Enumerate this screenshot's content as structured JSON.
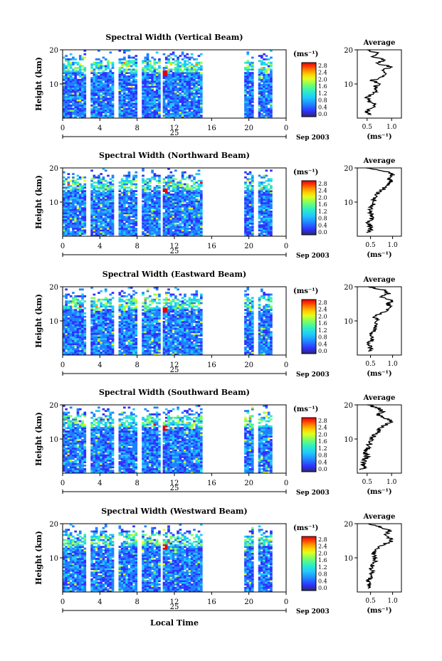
{
  "xaxis_label": "Local Time",
  "colorbar_unit": "(ms⁻¹)",
  "colorbar_ticks": [
    "2.8",
    "2.4",
    "2.0",
    "1.6",
    "1.2",
    "0.8",
    "0.4",
    "0.0"
  ],
  "height_label": "Height (km)",
  "avg_title": "Average",
  "avg_xlabel": "(ms⁻¹)",
  "date_day": "25",
  "date_month": "Sep 2003",
  "colors": {
    "scale": [
      "#2a2a6a",
      "#3030ff",
      "#2080ff",
      "#20c8ff",
      "#30f0c0",
      "#80ff60",
      "#e0ff20",
      "#ffd000",
      "#ff8000",
      "#ff3000",
      "#e00010"
    ],
    "missing": "#ffffff",
    "axis": "#000000"
  },
  "chart_data": [
    {
      "type": "heatmap",
      "title": "Spectral Width (Vertical Beam)",
      "xlim": [
        0,
        24
      ],
      "ylim": [
        0,
        20
      ],
      "xticks": [
        "0",
        "4",
        "8",
        "12",
        "16",
        "20",
        "0"
      ],
      "yticks": [
        "10",
        "20"
      ],
      "clim": [
        0.0,
        2.8
      ],
      "data_gaps_hours": [
        [
          2.5,
          3.0
        ],
        [
          5.5,
          6.0
        ],
        [
          7.8,
          8.3
        ],
        [
          10.3,
          10.7
        ],
        [
          15.0,
          19.3
        ],
        [
          20.5,
          21.0
        ],
        [
          22.4,
          24.0
        ]
      ],
      "average_profile": {
        "title": "Average",
        "xlim": [
          0.3,
          1.2
        ],
        "xticks": [
          "0.5",
          "1.0"
        ],
        "yticks": [
          "10",
          "20"
        ],
        "height_km": [
          1,
          2,
          3,
          4,
          5,
          6,
          7,
          8,
          9,
          10,
          11,
          12,
          13,
          14,
          15,
          16,
          17,
          18,
          19,
          20
        ],
        "width_ms": [
          0.55,
          0.5,
          0.6,
          0.65,
          0.55,
          0.5,
          0.6,
          0.7,
          0.65,
          0.75,
          0.6,
          0.8,
          0.9,
          0.75,
          1.0,
          0.7,
          0.85,
          0.6,
          0.7,
          0.5
        ]
      }
    },
    {
      "type": "heatmap",
      "title": "Spectral Width (Northward Beam)",
      "xlim": [
        0,
        24
      ],
      "ylim": [
        0,
        20
      ],
      "xticks": [
        "0",
        "4",
        "8",
        "12",
        "16",
        "20",
        "0"
      ],
      "yticks": [
        "10",
        "20"
      ],
      "clim": [
        0.0,
        2.8
      ],
      "data_gaps_hours": [
        [
          2.5,
          3.0
        ],
        [
          5.5,
          6.0
        ],
        [
          7.8,
          8.3
        ],
        [
          10.3,
          10.7
        ],
        [
          15.0,
          19.3
        ],
        [
          20.5,
          21.0
        ],
        [
          22.4,
          24.0
        ]
      ],
      "average_profile": {
        "title": "Average",
        "xlim": [
          0.2,
          1.2
        ],
        "xticks": [
          "0.5",
          "1.0"
        ],
        "yticks": [
          "10",
          "20"
        ],
        "height_km": [
          1,
          2,
          3,
          4,
          5,
          6,
          7,
          8,
          9,
          10,
          11,
          12,
          13,
          14,
          15,
          16,
          17,
          18,
          19,
          20
        ],
        "width_ms": [
          0.45,
          0.5,
          0.5,
          0.45,
          0.5,
          0.55,
          0.5,
          0.5,
          0.55,
          0.55,
          0.6,
          0.65,
          0.7,
          0.8,
          0.9,
          0.95,
          0.9,
          1.0,
          0.85,
          0.4
        ]
      }
    },
    {
      "type": "heatmap",
      "title": "Spectral Width (Eastward Beam)",
      "xlim": [
        0,
        24
      ],
      "ylim": [
        0,
        20
      ],
      "xticks": [
        "0",
        "4",
        "8",
        "12",
        "16",
        "20",
        "0"
      ],
      "yticks": [
        "10",
        "20"
      ],
      "clim": [
        0.0,
        2.8
      ],
      "data_gaps_hours": [
        [
          2.5,
          3.0
        ],
        [
          5.5,
          6.0
        ],
        [
          7.8,
          8.3
        ],
        [
          10.3,
          10.7
        ],
        [
          15.0,
          19.3
        ],
        [
          20.5,
          21.0
        ],
        [
          22.4,
          24.0
        ]
      ],
      "average_profile": {
        "title": "Average",
        "xlim": [
          0.2,
          1.2
        ],
        "xticks": [
          "0.5",
          "1.0"
        ],
        "yticks": [
          "10",
          "20"
        ],
        "height_km": [
          1,
          2,
          3,
          4,
          5,
          6,
          7,
          8,
          9,
          10,
          11,
          12,
          13,
          14,
          15,
          16,
          17,
          18,
          19,
          20
        ],
        "width_ms": [
          0.45,
          0.5,
          0.45,
          0.5,
          0.55,
          0.5,
          0.55,
          0.6,
          0.6,
          0.65,
          0.6,
          0.7,
          0.85,
          0.95,
          0.9,
          1.0,
          0.75,
          0.9,
          0.8,
          0.45
        ]
      }
    },
    {
      "type": "heatmap",
      "title": "Spectral Width (Southward Beam)",
      "xlim": [
        0,
        24
      ],
      "ylim": [
        0,
        20
      ],
      "xticks": [
        "0",
        "4",
        "8",
        "12",
        "16",
        "20",
        "0"
      ],
      "yticks": [
        "10",
        "20"
      ],
      "clim": [
        0.0,
        2.8
      ],
      "data_gaps_hours": [
        [
          2.5,
          3.0
        ],
        [
          5.5,
          6.0
        ],
        [
          7.8,
          8.3
        ],
        [
          10.3,
          10.7
        ],
        [
          15.0,
          19.3
        ],
        [
          20.5,
          21.0
        ],
        [
          22.4,
          24.0
        ]
      ],
      "average_profile": {
        "title": "Average",
        "xlim": [
          0.3,
          1.2
        ],
        "xticks": [
          "0.5",
          "1.0"
        ],
        "yticks": [
          "10",
          "20"
        ],
        "height_km": [
          1,
          2,
          3,
          4,
          5,
          6,
          7,
          8,
          9,
          10,
          11,
          12,
          13,
          14,
          15,
          16,
          17,
          18,
          19,
          20
        ],
        "width_ms": [
          0.4,
          0.45,
          0.4,
          0.45,
          0.5,
          0.45,
          0.5,
          0.55,
          0.55,
          0.6,
          0.65,
          0.7,
          0.75,
          0.85,
          1.0,
          0.9,
          0.7,
          0.8,
          0.75,
          0.5
        ]
      }
    },
    {
      "type": "heatmap",
      "title": "Spectral Width (Westward Beam)",
      "xlim": [
        0,
        24
      ],
      "ylim": [
        0,
        20
      ],
      "xticks": [
        "0",
        "4",
        "8",
        "12",
        "16",
        "20",
        "0"
      ],
      "yticks": [
        "10",
        "20"
      ],
      "clim": [
        0.0,
        2.8
      ],
      "data_gaps_hours": [
        [
          2.5,
          3.0
        ],
        [
          5.5,
          6.0
        ],
        [
          7.8,
          8.3
        ],
        [
          10.3,
          10.7
        ],
        [
          15.0,
          19.3
        ],
        [
          20.5,
          21.0
        ],
        [
          22.4,
          24.0
        ]
      ],
      "average_profile": {
        "title": "Average",
        "xlim": [
          0.2,
          1.2
        ],
        "xticks": [
          "0.5",
          "1.0"
        ],
        "yticks": [
          "10",
          "20"
        ],
        "height_km": [
          1,
          2,
          3,
          4,
          5,
          6,
          7,
          8,
          9,
          10,
          11,
          12,
          13,
          14,
          15,
          16,
          17,
          18,
          19,
          20
        ],
        "width_ms": [
          0.45,
          0.5,
          0.45,
          0.5,
          0.5,
          0.55,
          0.5,
          0.55,
          0.6,
          0.6,
          0.55,
          0.6,
          0.7,
          0.8,
          1.0,
          0.9,
          0.85,
          0.95,
          0.75,
          0.45
        ]
      }
    }
  ]
}
